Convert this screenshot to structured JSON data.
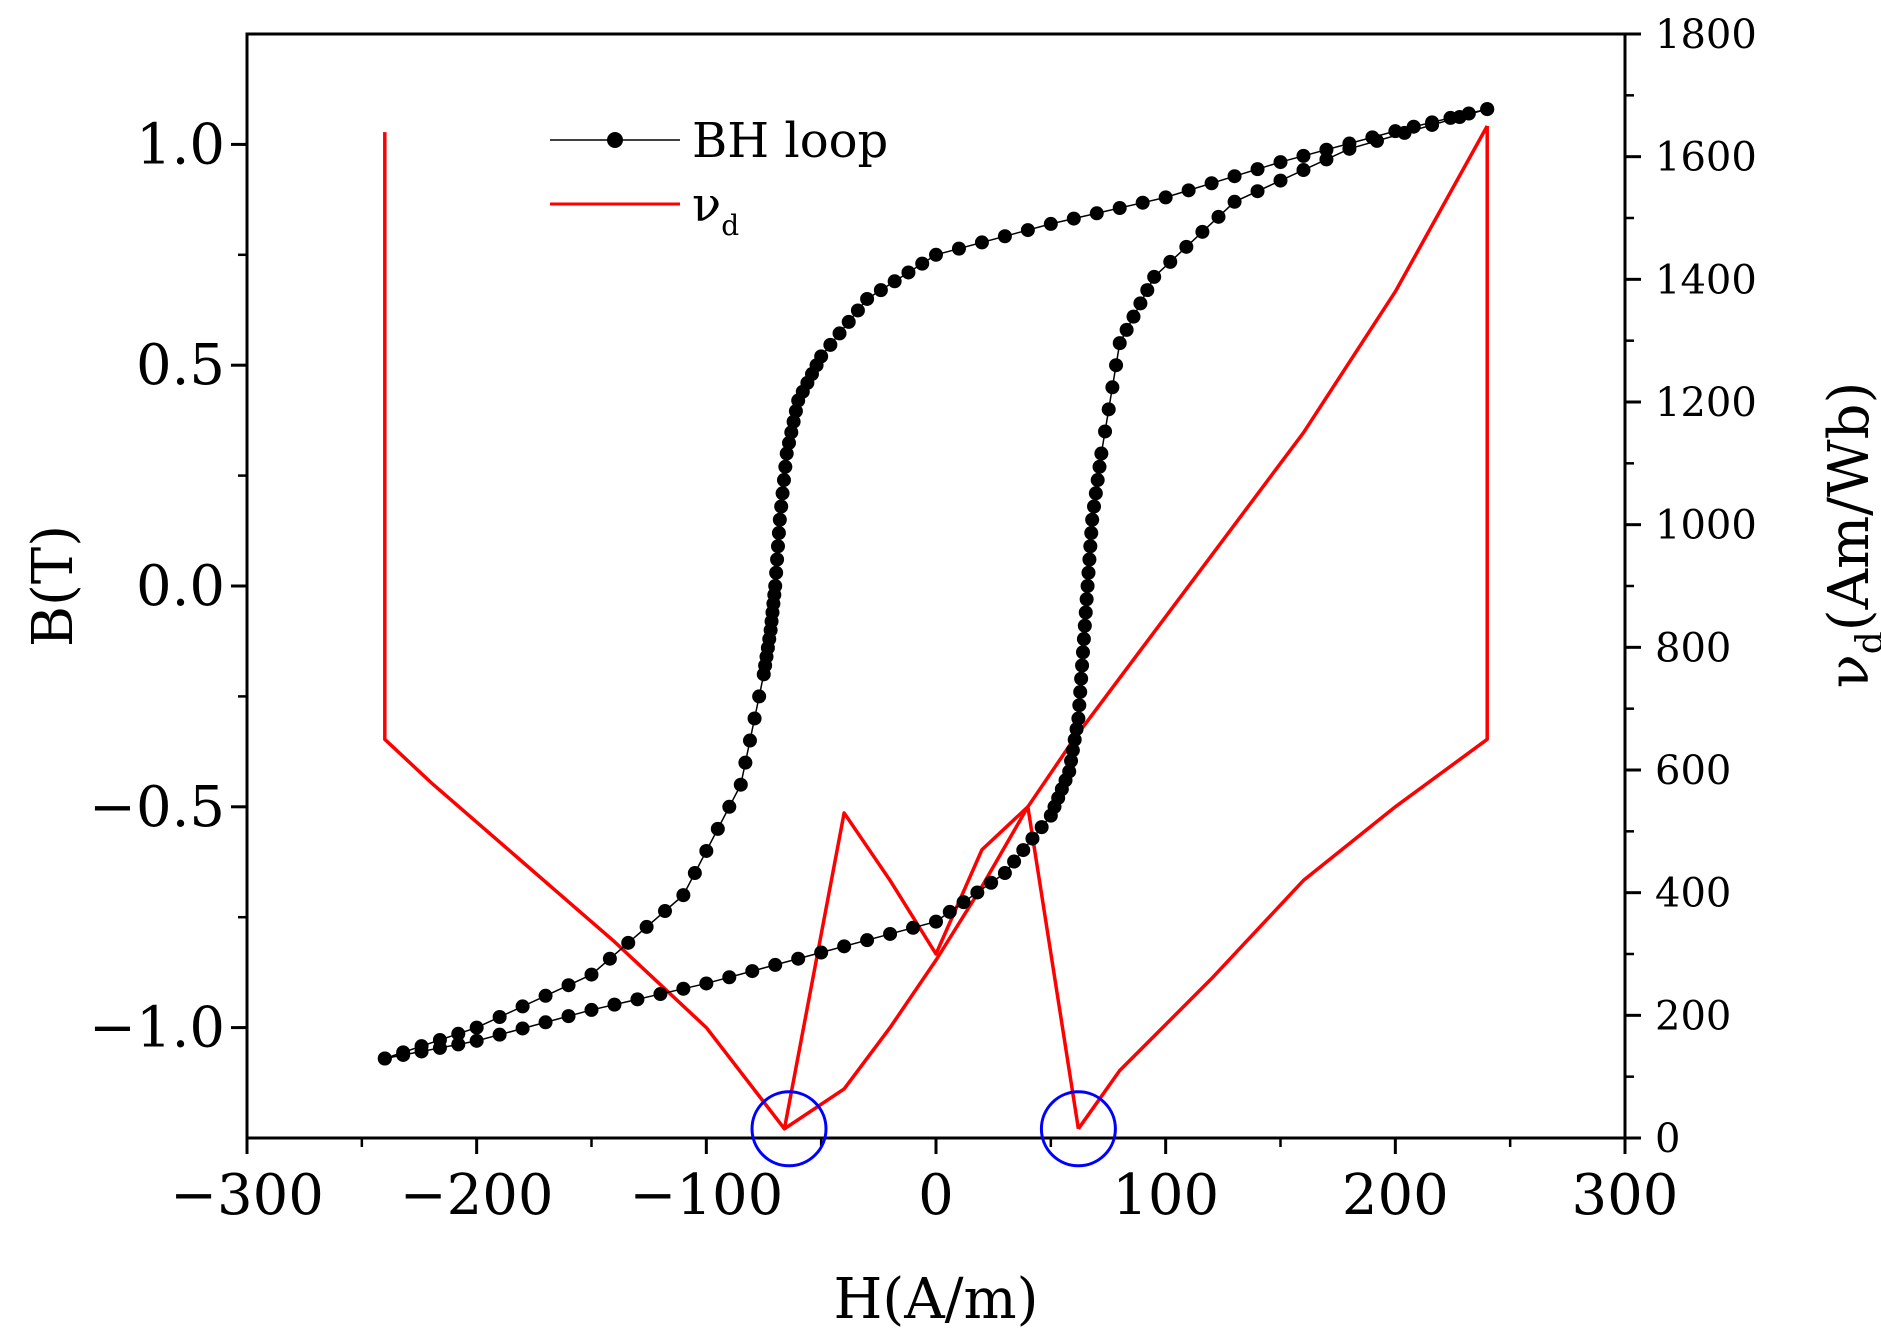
{
  "chart_data": {
    "type": "line",
    "title": "",
    "xlabel": "H(A/m)",
    "ylabel_left": "B(T)",
    "ylabel_right_main": "ν",
    "ylabel_right_sub": "d",
    "ylabel_right_unit": "(Am/Wb)",
    "xlim": [
      -300,
      300
    ],
    "ylim_left": [
      -1.25,
      1.25
    ],
    "ylim_right": [
      0,
      1800
    ],
    "xticks": [
      -300,
      -200,
      -100,
      0,
      100,
      200,
      300
    ],
    "xtick_labels": [
      "−300",
      "−200",
      "−100",
      "0",
      "100",
      "200",
      "300"
    ],
    "yticks_left": [
      1.0,
      0.5,
      0.0,
      -0.5,
      -1.0
    ],
    "ytick_left_labels": [
      "1.0",
      "0.5",
      "0.0",
      "−0.5",
      "−1.0"
    ],
    "yticks_right": [
      0,
      200,
      400,
      600,
      800,
      1000,
      1200,
      1400,
      1600,
      1800
    ],
    "ytick_right_labels": [
      "0",
      "200",
      "400",
      "600",
      "800",
      "1000",
      "1200",
      "1400",
      "1600",
      "1800"
    ],
    "legend_position": "top-left",
    "grid": false,
    "series": [
      {
        "name": "BH loop",
        "axis": "left",
        "color": "#000000",
        "style": "line-with-circle-markers",
        "descending_branch": {
          "H": [
            240,
            200,
            150,
            100,
            50,
            0,
            -30,
            -50,
            -60,
            -65,
            -68,
            -70,
            -72,
            -75,
            -85,
            -110,
            -150,
            -200,
            -240
          ],
          "B": [
            1.08,
            1.03,
            0.96,
            0.88,
            0.82,
            0.75,
            0.65,
            0.52,
            0.42,
            0.3,
            0.15,
            0.0,
            -0.1,
            -0.2,
            -0.45,
            -0.7,
            -0.88,
            -1.0,
            -1.07
          ]
        },
        "ascending_branch": {
          "H": [
            -240,
            -200,
            -150,
            -100,
            -50,
            0,
            30,
            50,
            58,
            62,
            64,
            66,
            68,
            72,
            80,
            95,
            130,
            180,
            240
          ],
          "B": [
            -1.07,
            -1.03,
            -0.96,
            -0.9,
            -0.83,
            -0.76,
            -0.65,
            -0.52,
            -0.42,
            -0.3,
            -0.15,
            0.0,
            0.15,
            0.3,
            0.55,
            0.7,
            0.87,
            0.99,
            1.08
          ]
        }
      },
      {
        "name": "ν_d",
        "legend_main": "ν",
        "legend_sub": "d",
        "axis": "right",
        "color": "#ff0000",
        "style": "line",
        "segments": [
          {
            "H": [
              -240,
              -240,
              -220,
              -180,
              -140,
              -100,
              -66,
              -40,
              -20,
              0,
              20,
              40,
              62
            ],
            "nu": [
              1640,
              650,
              580,
              450,
              320,
              180,
              15,
              80,
              180,
              290,
              410,
              540,
              15
            ]
          },
          {
            "H": [
              -66,
              -40,
              -20,
              0,
              20,
              40,
              60,
              100,
              160,
              200,
              240,
              240
            ],
            "nu": [
              15,
              530,
              420,
              300,
              470,
              540,
              650,
              850,
              1150,
              1380,
              1650,
              1650
            ]
          },
          {
            "H": [
              62,
              80,
              120,
              160,
              200,
              240,
              240
            ],
            "nu": [
              15,
              110,
              260,
              420,
              540,
              650,
              1650
            ]
          }
        ]
      }
    ],
    "annotations": [
      {
        "type": "circle",
        "color": "#0000ff",
        "center_H": -64,
        "center_nu": 15,
        "note": "minimum of ν_d"
      },
      {
        "type": "circle",
        "color": "#0000ff",
        "center_H": 62,
        "center_nu": 15,
        "note": "minimum of ν_d"
      }
    ]
  }
}
